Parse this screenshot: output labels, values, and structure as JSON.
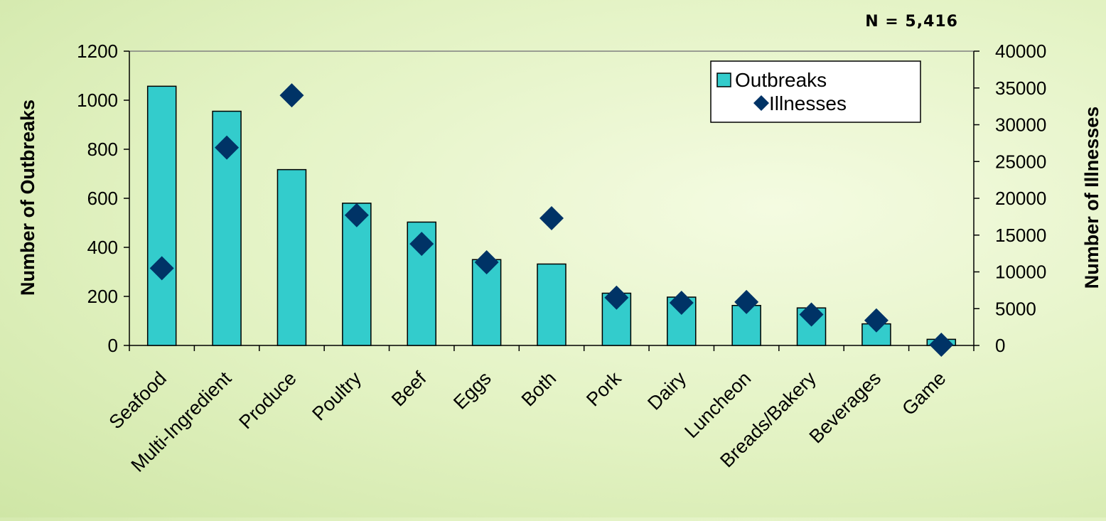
{
  "chart_data": {
    "type": "bar",
    "annotation": "N = 5,416",
    "categories": [
      "Seafood",
      "Multi-Ingredient",
      "Produce",
      "Poultry",
      "Beef",
      "Eggs",
      "Both",
      "Pork",
      "Dairy",
      "Luncheon",
      "Breads/Bakery",
      "Beverages",
      "Game"
    ],
    "series": [
      {
        "name": "Outbreaks",
        "kind": "bar",
        "axis": "left",
        "color": "#33cccc",
        "values": [
          1057,
          955,
          717,
          580,
          503,
          350,
          332,
          213,
          197,
          163,
          153,
          88,
          25
        ]
      },
      {
        "name": "Illnesses",
        "kind": "marker",
        "marker": "diamond",
        "axis": "right",
        "color": "#003366",
        "values": [
          10500,
          26900,
          34000,
          17700,
          13800,
          11300,
          17300,
          6500,
          5800,
          5900,
          4200,
          3400,
          100
        ]
      }
    ],
    "ylabel": "Number of Outbreaks",
    "y2label": "Number of Illnesses",
    "ylim": [
      0,
      1200
    ],
    "y2lim": [
      0,
      40000
    ],
    "yticks": [
      "0",
      "200",
      "400",
      "600",
      "800",
      "1000",
      "1200"
    ],
    "y2ticks": [
      "0",
      "5000",
      "10000",
      "15000",
      "20000",
      "25000",
      "30000",
      "35000",
      "40000"
    ],
    "grid": false,
    "legend_position": "top-right"
  }
}
